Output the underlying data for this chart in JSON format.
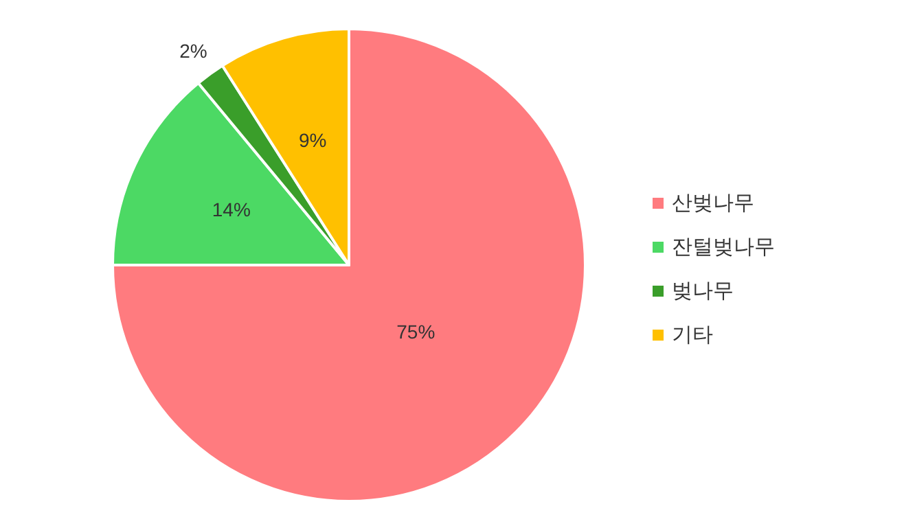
{
  "chart_data": {
    "type": "pie",
    "categories": [
      "산벚나무",
      "잔털벚나무",
      "벚나무",
      "기타"
    ],
    "values": [
      75,
      14,
      2,
      9
    ],
    "value_labels": [
      "75%",
      "14%",
      "2%",
      "9%"
    ],
    "colors": [
      "#ff7b7f",
      "#4cd964",
      "#3a9e2a",
      "#ffc000"
    ],
    "legend": "right"
  }
}
